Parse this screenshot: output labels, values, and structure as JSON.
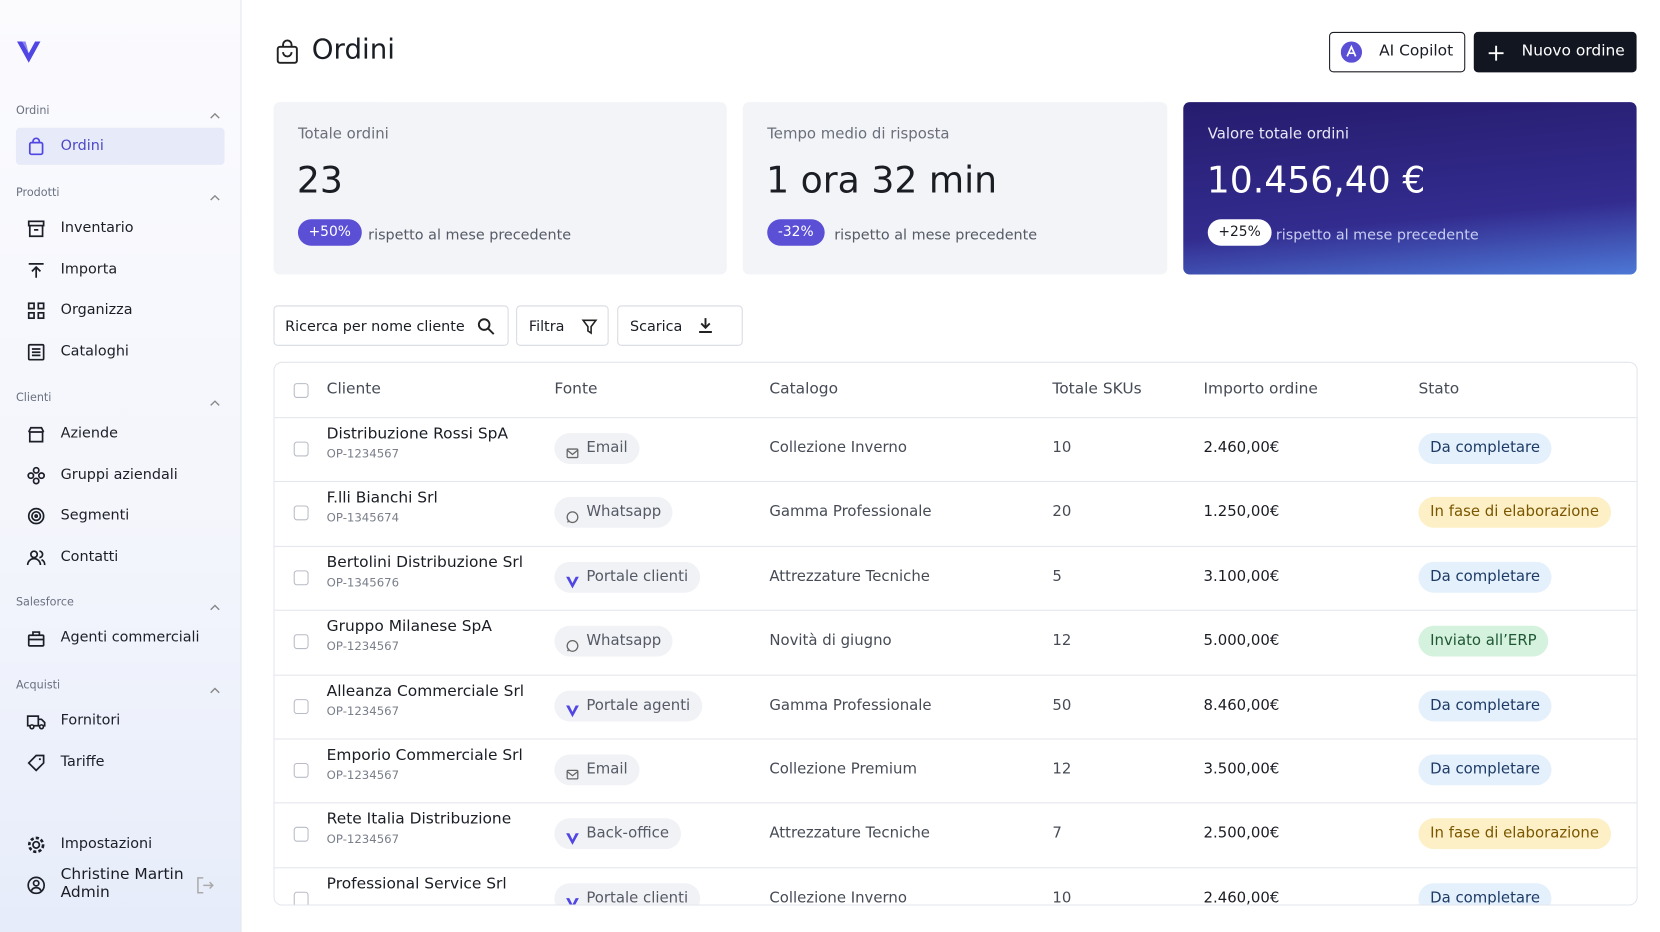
{
  "sidebar": {
    "sections": [
      {
        "label": "Ordini",
        "items": [
          "Ordini"
        ]
      },
      {
        "label": "Prodotti",
        "items": [
          "Inventario",
          "Importa",
          "Organizza",
          "Cataloghi"
        ]
      },
      {
        "label": "Clienti",
        "items": [
          "Aziende",
          "Gruppi aziendali",
          "Segmenti",
          "Contatti"
        ]
      },
      {
        "label": "Salesforce",
        "items": [
          "Agenti commerciali"
        ]
      },
      {
        "label": "Acquisti",
        "items": [
          "Fornitori",
          "Tariffe"
        ]
      }
    ],
    "settings": "Impostazioni",
    "user": {
      "name": "Christine Martin",
      "role": "Admin"
    }
  },
  "header": {
    "title": "Ordini",
    "copilot": "AI Copilot",
    "new_order": "Nuovo ordine"
  },
  "stats": [
    {
      "label": "Totale ordini",
      "value": "23",
      "badge": "+50%",
      "note": "rispetto al mese precedente"
    },
    {
      "label": "Tempo medio di risposta",
      "value": "1 ora 32 min",
      "badge": "-32%",
      "note": "rispetto al mese precedente"
    },
    {
      "label": "Valore totale ordini",
      "value": "10.456,40 €",
      "badge": "+25%",
      "note": "rispetto al mese precedente"
    }
  ],
  "toolbar": {
    "search": "Ricerca per nome cliente",
    "filter": "Filtra",
    "download": "Scarica"
  },
  "table": {
    "columns": [
      "Cliente",
      "Fonte",
      "Catalogo",
      "Totale SKUs",
      "Importo ordine",
      "Stato"
    ],
    "rows": [
      {
        "cliente": "Distribuzione Rossi SpA",
        "code": "OP-1234567",
        "fonte": "Email",
        "icon": "mail",
        "catalogo": "Collezione Inverno",
        "skus": "10",
        "importo": "2.460,00€",
        "stato": "Da completare",
        "stato_bg": "#e4f0fb",
        "stato_fg": "#1d3b66"
      },
      {
        "cliente": "F.lli Bianchi Srl",
        "code": "OP-1345674",
        "fonte": "Whatsapp",
        "icon": "chat",
        "catalogo": "Gamma Professionale",
        "skus": "20",
        "importo": "1.250,00€",
        "stato": "In fase di elaborazione",
        "stato_bg": "#fdf0c6",
        "stato_fg": "#7a5600"
      },
      {
        "cliente": "Bertolini Distribuzione Srl",
        "code": "OP-1345676",
        "fonte": "Portale clienti",
        "icon": "logo",
        "catalogo": "Attrezzature Tecniche",
        "skus": "5",
        "importo": "3.100,00€",
        "stato": "Da completare",
        "stato_bg": "#e4f0fb",
        "stato_fg": "#1d3b66"
      },
      {
        "cliente": "Gruppo Milanese SpA",
        "code": "OP-1234567",
        "fonte": "Whatsapp",
        "icon": "chat",
        "catalogo": "Novità di giugno",
        "skus": "12",
        "importo": "5.000,00€",
        "stato": "Inviato all’ERP",
        "stato_bg": "#d5f2de",
        "stato_fg": "#1f5734"
      },
      {
        "cliente": "Alleanza Commerciale Srl",
        "code": "OP-1234567",
        "fonte": "Portale agenti",
        "icon": "logo",
        "catalogo": "Gamma Professionale",
        "skus": "50",
        "importo": "8.460,00€",
        "stato": "Da completare",
        "stato_bg": "#e4f0fb",
        "stato_fg": "#1d3b66"
      },
      {
        "cliente": "Emporio Commerciale Srl",
        "code": "OP-1234567",
        "fonte": "Email",
        "icon": "mail",
        "catalogo": "Collezione Premium",
        "skus": "12",
        "importo": "3.500,00€",
        "stato": "Da completare",
        "stato_bg": "#e4f0fb",
        "stato_fg": "#1d3b66"
      },
      {
        "cliente": "Rete Italia Distribuzione",
        "code": "OP-1234567",
        "fonte": "Back-office",
        "icon": "logo",
        "catalogo": "Attrezzature Tecniche",
        "skus": "7",
        "importo": "2.500,00€",
        "stato": "In fase di elaborazione",
        "stato_bg": "#fdf0c6",
        "stato_fg": "#7a5600"
      },
      {
        "cliente": "Professional Service Srl",
        "fonte": "Portale clienti",
        "icon": "logo",
        "catalogo": "Collezione Inverno",
        "skus": "10",
        "importo": "2.460,00€",
        "stato": "Da completare",
        "stato_bg": "#e4f0fb",
        "stato_fg": "#1d3b66"
      }
    ]
  }
}
